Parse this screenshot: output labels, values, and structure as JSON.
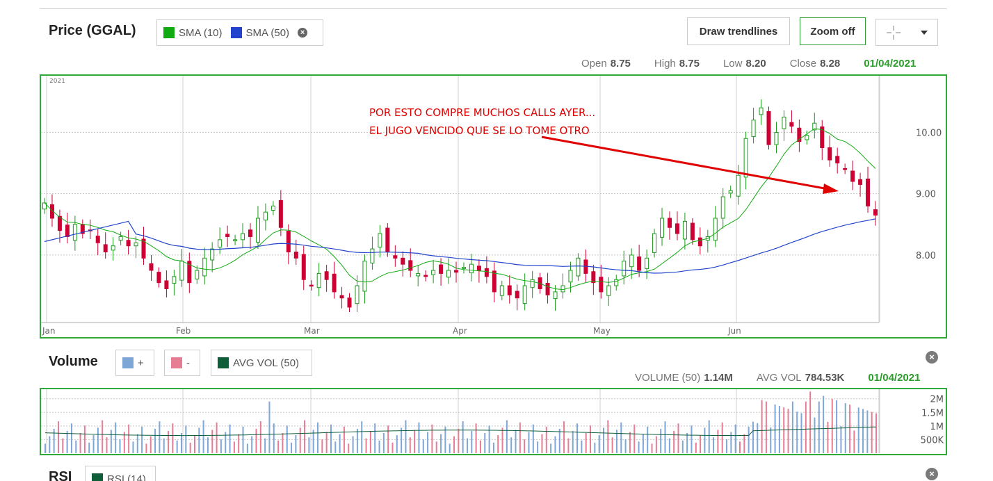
{
  "price": {
    "title": "Price (GGAL)",
    "sma10_label": "SMA (10)",
    "sma50_label": "SMA (50)",
    "sma10_color": "#11aa11",
    "sma50_color": "#2244cc",
    "draw_trendlines_label": "Draw trendlines",
    "zoom_label": "Zoom off",
    "open_label": "Open",
    "open_value": "8.75",
    "high_label": "High",
    "high_value": "8.75",
    "low_label": "Low",
    "low_value": "8.20",
    "close_label": "Close",
    "close_value": "8.28",
    "date": "01/04/2021",
    "year_label": "2021",
    "annotation_line1": "POR ESTO COMPRE MUCHOS CALLS AYER...",
    "annotation_line2": "EL JUGO VENCIDO QUE SE LO TOME OTRO",
    "annotation_color": "#e00000",
    "up_color": "#1a9a1a",
    "down_color": "#cc0033"
  },
  "volume": {
    "title": "Volume",
    "plus_label": "+",
    "minus_label": "-",
    "avgvol_label": "AVG VOL (50)",
    "plus_color": "#7ea7d8",
    "minus_color": "#e67d95",
    "avgvol_color": "#0f5e3a",
    "vol50_label": "VOLUME (50)",
    "vol50_value": "1.14M",
    "avg_label": "AVG VOL",
    "avg_value": "784.53K",
    "date": "01/04/2021"
  },
  "rsi": {
    "title": "RSI",
    "label": "RSI (14)"
  },
  "chart_data": [
    {
      "type": "candlestick",
      "title": "Price (GGAL)",
      "x_labels": [
        "Jan",
        "Feb",
        "Mar",
        "Apr",
        "May",
        "Jun"
      ],
      "y_ticks": [
        "10.00",
        "9.00",
        "8.00"
      ],
      "ylim": [
        6.9,
        10.9
      ],
      "series_names": [
        "SMA (10)",
        "SMA (50)"
      ],
      "closes": [
        8.85,
        8.6,
        8.4,
        8.3,
        8.5,
        8.35,
        8.4,
        8.2,
        8.05,
        8.15,
        8.3,
        8.15,
        8.2,
        7.95,
        7.75,
        7.55,
        7.45,
        7.65,
        7.9,
        7.55,
        7.75,
        7.95,
        8.1,
        8.25,
        8.3,
        8.25,
        8.35,
        8.3,
        8.6,
        8.7,
        8.8,
        8.45,
        8.05,
        7.95,
        7.6,
        7.5,
        7.7,
        7.6,
        7.4,
        7.3,
        7.15,
        7.5,
        7.9,
        8.1,
        8.35,
        8.05,
        7.95,
        7.85,
        7.75,
        7.7,
        7.65,
        7.75,
        7.7,
        7.75,
        7.72,
        7.8,
        7.85,
        7.75,
        7.65,
        7.4,
        7.5,
        7.35,
        7.3,
        7.5,
        7.6,
        7.45,
        7.35,
        7.4,
        7.5,
        7.75,
        7.95,
        7.7,
        7.55,
        7.4,
        7.5,
        7.6,
        7.9,
        8.0,
        7.75,
        7.95,
        8.35,
        8.6,
        8.45,
        8.35,
        8.55,
        8.25,
        8.15,
        8.3,
        8.6,
        8.95,
        9.05,
        9.3,
        9.9,
        10.2,
        10.4,
        9.8,
        10.0,
        10.25,
        10.1,
        9.85,
        9.95,
        10.15,
        9.75,
        9.55,
        9.5,
        9.4,
        9.2,
        9.15,
        8.8,
        8.65
      ]
    },
    {
      "type": "bar",
      "title": "Volume",
      "y_ticks": [
        "2M",
        "1.5M",
        "1M",
        "500K"
      ],
      "ylim": [
        0,
        2.3
      ]
    }
  ]
}
